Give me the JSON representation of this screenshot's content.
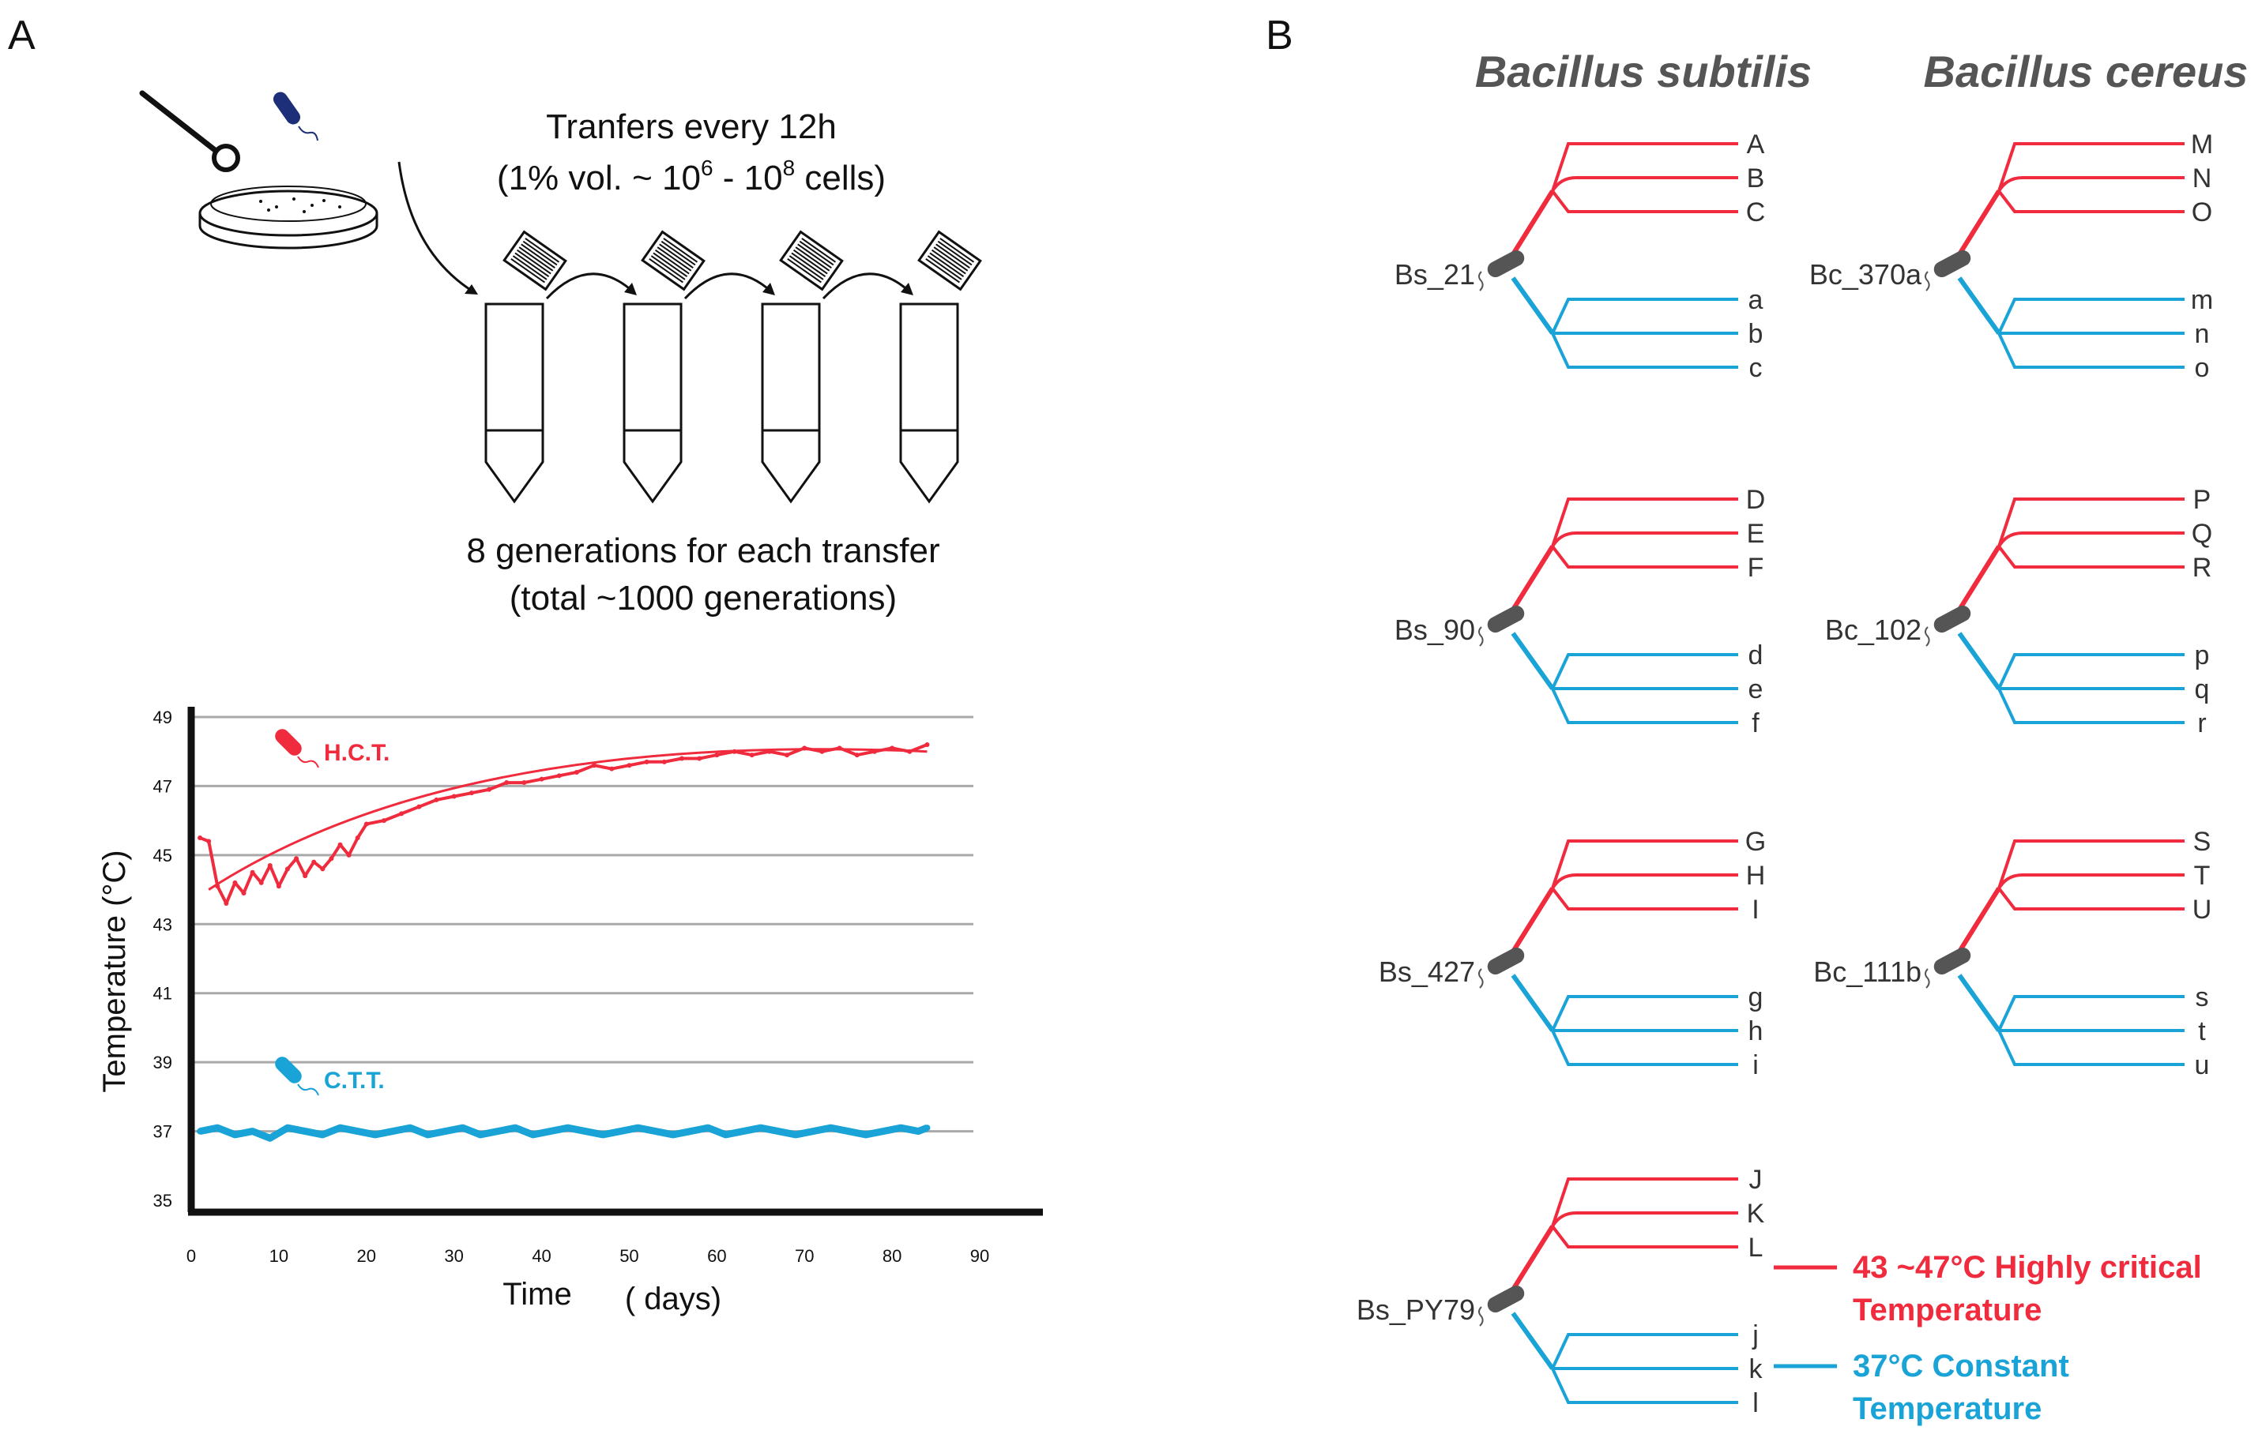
{
  "colors": {
    "hct": "#ef2b3d",
    "ctt": "#1aa3d6",
    "ink": "#111111",
    "strain": "#555555"
  },
  "panel_a": {
    "label": "A",
    "protocol_line1": "Tranfers every 12h",
    "protocol_line2_pre": "(1% vol.  ~  10",
    "protocol_exp1": "6",
    "protocol_mid": "  -  10",
    "protocol_exp2": "8",
    "protocol_post": " cells)",
    "generations_line1": "8 generations  for each transfer",
    "generations_line2": "(total ~1000 generations)"
  },
  "chart_data": {
    "type": "line",
    "xlabel": "Time",
    "xunit": "( days)",
    "ylabel": "Temperature  (°C)",
    "xlim": [
      0,
      90
    ],
    "ylim": [
      35,
      49
    ],
    "x_ticks": [
      "0",
      "10",
      "20",
      "30",
      "40",
      "50",
      "60",
      "70",
      "80",
      "90"
    ],
    "y_ticks": [
      "35",
      "37",
      "39",
      "41",
      "43",
      "45",
      "47",
      "49"
    ],
    "grid": "horizontal",
    "series": [
      {
        "name": "H.C.T.",
        "x": [
          1,
          2,
          3,
          4,
          5,
          6,
          7,
          8,
          9,
          10,
          11,
          12,
          13,
          14,
          15,
          16,
          17,
          18,
          19,
          20,
          22,
          24,
          26,
          28,
          30,
          32,
          34,
          36,
          38,
          40,
          42,
          44,
          46,
          48,
          50,
          52,
          54,
          56,
          58,
          60,
          62,
          64,
          66,
          68,
          70,
          72,
          74,
          76,
          78,
          80,
          82,
          84
        ],
        "values": [
          45.5,
          45.4,
          44.1,
          43.6,
          44.2,
          43.9,
          44.5,
          44.2,
          44.7,
          44.1,
          44.6,
          44.9,
          44.4,
          44.8,
          44.6,
          44.9,
          45.3,
          45.0,
          45.5,
          45.9,
          46.0,
          46.2,
          46.4,
          46.6,
          46.7,
          46.8,
          46.9,
          47.1,
          47.1,
          47.2,
          47.3,
          47.4,
          47.6,
          47.5,
          47.6,
          47.7,
          47.7,
          47.8,
          47.8,
          47.9,
          48.0,
          47.9,
          48.0,
          47.9,
          48.1,
          48.0,
          48.1,
          47.9,
          48.0,
          48.1,
          48.0,
          48.2
        ]
      },
      {
        "name": "C.T.T.",
        "x": [
          1,
          3,
          5,
          7,
          9,
          11,
          13,
          15,
          17,
          19,
          21,
          23,
          25,
          27,
          29,
          31,
          33,
          35,
          37,
          39,
          41,
          43,
          45,
          47,
          49,
          51,
          53,
          55,
          57,
          59,
          61,
          63,
          65,
          67,
          69,
          71,
          73,
          75,
          77,
          79,
          81,
          83,
          84
        ],
        "values": [
          37.0,
          37.1,
          36.9,
          37.0,
          36.8,
          37.1,
          37.0,
          36.9,
          37.1,
          37.0,
          36.9,
          37.0,
          37.1,
          36.9,
          37.0,
          37.1,
          36.9,
          37.0,
          37.1,
          36.9,
          37.0,
          37.1,
          37.0,
          36.9,
          37.0,
          37.1,
          37.0,
          36.9,
          37.0,
          37.1,
          36.9,
          37.0,
          37.1,
          37.0,
          36.9,
          37.0,
          37.1,
          37.0,
          36.9,
          37.0,
          37.1,
          37.0,
          37.1
        ]
      }
    ],
    "trend_hct": {
      "x": [
        2,
        84
      ],
      "values": [
        44.0,
        48.0
      ]
    }
  },
  "panel_b": {
    "label": "B",
    "species": [
      "Bacillus subtilis",
      "Bacillus cereus"
    ],
    "groups": [
      {
        "strain": "Bs_21",
        "hot": [
          "A",
          "B",
          "C"
        ],
        "cold": [
          "a",
          "b",
          "c"
        ]
      },
      {
        "strain": "Bs_90",
        "hot": [
          "D",
          "E",
          "F"
        ],
        "cold": [
          "d",
          "e",
          "f"
        ]
      },
      {
        "strain": "Bs_427",
        "hot": [
          "G",
          "H",
          "I"
        ],
        "cold": [
          "g",
          "h",
          "i"
        ]
      },
      {
        "strain": "Bs_PY79",
        "hot": [
          "J",
          "K",
          "L"
        ],
        "cold": [
          "j",
          "k",
          "l"
        ]
      },
      {
        "strain": "Bc_370a",
        "hot": [
          "M",
          "N",
          "O"
        ],
        "cold": [
          "m",
          "n",
          "o"
        ]
      },
      {
        "strain": "Bc_102",
        "hot": [
          "P",
          "Q",
          "R"
        ],
        "cold": [
          "p",
          "q",
          "r"
        ]
      },
      {
        "strain": "Bc_111b",
        "hot": [
          "S",
          "T",
          "U"
        ],
        "cold": [
          "s",
          "t",
          "u"
        ]
      }
    ],
    "legend": {
      "hot_line1": "43 ~47°C  Highly critical",
      "hot_line2": "Temperature",
      "cold_line1": "37°C  Constant",
      "cold_line2": "Temperature"
    }
  }
}
